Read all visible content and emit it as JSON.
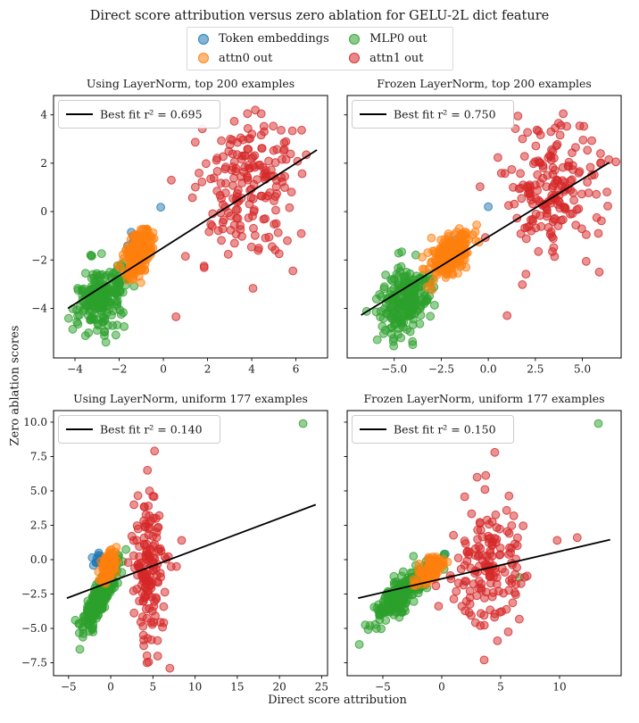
{
  "figure": {
    "title": "Direct score attribution versus zero ablation for GELU-2L dict feature",
    "xlabel": "Direct score attribution",
    "ylabel": "Zero ablation scores",
    "background": "#ffffff"
  },
  "legend": {
    "entries": [
      {
        "label": "Token embeddings",
        "color": "#1f77b4"
      },
      {
        "label": "attn0 out",
        "color": "#ff7f0e"
      },
      {
        "label": "MLP0 out",
        "color": "#2ca02c"
      },
      {
        "label": "attn1 out",
        "color": "#d62728"
      }
    ]
  },
  "chart_data": {
    "type": "scatter",
    "title": "Direct score attribution versus zero ablation for GELU-2L dict feature",
    "xlabel": "Direct score attribution",
    "ylabel": "Zero ablation scores",
    "grid": false,
    "series_names": [
      "Token embeddings",
      "attn0 out",
      "MLP0 out",
      "attn1 out"
    ],
    "subplots": [
      {
        "name": "using-layernorm-top-200",
        "title": "Using LayerNorm, top 200 examples",
        "legend_label": "Best fit r² = 0.695",
        "r_squared": 0.695,
        "xlim": [
          -4.97,
          7.43
        ],
        "ylim": [
          -6.05,
          4.8
        ],
        "xticks": [
          -4,
          -2,
          0,
          2,
          4,
          6
        ],
        "xtick_labels": [
          "−4",
          "−2",
          "0",
          "2",
          "4",
          "6"
        ],
        "yticks": [
          4,
          2,
          0,
          -2,
          -4
        ],
        "ytick_labels": [
          "4",
          "2",
          "0",
          "−2",
          "−4"
        ],
        "best_fit": {
          "x1": -4.32,
          "y1": -4.0,
          "x2": 6.95,
          "y2": 2.55
        },
        "clusters": [
          {
            "series": "Token embeddings",
            "n": 22,
            "cx": -1.25,
            "cy": -1.5,
            "sx": 0.18,
            "sy": 0.35,
            "rho": 0.3,
            "seed": 101
          },
          {
            "series": "MLP0 out",
            "n": 215,
            "cx": -2.75,
            "cy": -3.55,
            "sx": 0.62,
            "sy": 0.68,
            "rho": 0.3,
            "seed": 102
          },
          {
            "series": "attn0 out",
            "n": 200,
            "cx": -1.15,
            "cy": -1.75,
            "sx": 0.3,
            "sy": 0.48,
            "rho": 0.45,
            "seed": 103
          },
          {
            "series": "attn1 out",
            "n": 185,
            "cx": 3.7,
            "cy": 1.15,
            "sx": 1.05,
            "sy": 1.45,
            "rho": 0.05,
            "seed": 104
          }
        ],
        "extra_points": [
          {
            "series": "Token embeddings",
            "x": -0.12,
            "y": 0.18
          },
          {
            "series": "Token embeddings",
            "x": -1.45,
            "y": -0.85
          },
          {
            "series": "MLP0 out",
            "x": -2.6,
            "y": -5.4
          },
          {
            "series": "MLP0 out",
            "x": -2.15,
            "y": -5.1
          },
          {
            "series": "attn1 out",
            "x": 0.36,
            "y": 1.3
          },
          {
            "series": "attn1 out",
            "x": 1.0,
            "y": -1.85
          },
          {
            "series": "attn1 out",
            "x": 0.57,
            "y": -4.35
          }
        ]
      },
      {
        "name": "frozen-layernorm-top-200",
        "title": "Frozen LayerNorm, top 200 examples",
        "legend_label": "Best fit r² = 0.750",
        "r_squared": 0.75,
        "xlim": [
          -7.5,
          7.06
        ],
        "ylim": [
          -6.05,
          4.8
        ],
        "xticks": [
          -5,
          -2.5,
          0,
          2.5,
          5
        ],
        "xtick_labels": [
          "−5.0",
          "−2.5",
          "0.0",
          "2.5",
          "5.0"
        ],
        "yticks": [
          4,
          2,
          0,
          -2,
          -4
        ],
        "ytick_labels": [],
        "best_fit": {
          "x1": -6.76,
          "y1": -4.28,
          "x2": 6.43,
          "y2": 2.03
        },
        "clusters": [
          {
            "series": "Token embeddings",
            "n": 20,
            "cx": -2.0,
            "cy": -1.75,
            "sx": 0.3,
            "sy": 0.4,
            "rho": 0.3,
            "seed": 201
          },
          {
            "series": "MLP0 out",
            "n": 215,
            "cx": -4.5,
            "cy": -3.65,
            "sx": 0.72,
            "sy": 0.72,
            "rho": 0.35,
            "seed": 202
          },
          {
            "series": "attn0 out",
            "n": 200,
            "cx": -2.05,
            "cy": -1.8,
            "sx": 0.52,
            "sy": 0.48,
            "rho": 0.55,
            "seed": 203
          },
          {
            "series": "attn1 out",
            "n": 185,
            "cx": 3.35,
            "cy": 0.95,
            "sx": 1.3,
            "sy": 1.55,
            "rho": 0.05,
            "seed": 204
          }
        ],
        "extra_points": [
          {
            "series": "Token embeddings",
            "x": 0.0,
            "y": 0.2
          },
          {
            "series": "attn1 out",
            "x": 5.85,
            "y": -0.9
          },
          {
            "series": "attn1 out",
            "x": 5.9,
            "y": -2.5
          },
          {
            "series": "attn1 out",
            "x": 1.0,
            "y": -4.3
          },
          {
            "series": "MLP0 out",
            "x": -5.9,
            "y": -5.3
          }
        ]
      },
      {
        "name": "using-layernorm-uniform-177",
        "title": "Using LayerNorm, uniform 177 examples",
        "legend_label": "Best fit r² = 0.140",
        "r_squared": 0.14,
        "xlim": [
          -6.78,
          25.7
        ],
        "ylim": [
          -8.44,
          10.84
        ],
        "xticks": [
          -5,
          0,
          5,
          10,
          15,
          20,
          25
        ],
        "xtick_labels": [
          "−5",
          "0",
          "5",
          "10",
          "15",
          "20",
          "25"
        ],
        "yticks": [
          10,
          7.5,
          5,
          2.5,
          0,
          -2.5,
          -5,
          -7.5
        ],
        "ytick_labels": [
          "10.0",
          "7.5",
          "5.0",
          "2.5",
          "0.0",
          "−2.5",
          "−5.0",
          "−7.5"
        ],
        "best_fit": {
          "x1": -5.2,
          "y1": -2.8,
          "x2": 24.3,
          "y2": 4.0
        },
        "clusters": [
          {
            "series": "Token embeddings",
            "n": 14,
            "cx": -1.6,
            "cy": -0.05,
            "sx": 0.35,
            "sy": 0.25,
            "rho": 0.3,
            "seed": 301
          },
          {
            "series": "MLP0 out",
            "n": 240,
            "cx": -1.2,
            "cy": -2.7,
            "sx": 1.0,
            "sy": 1.15,
            "rho": 0.82,
            "seed": 302
          },
          {
            "series": "attn0 out",
            "n": 120,
            "cx": -0.2,
            "cy": -0.45,
            "sx": 0.42,
            "sy": 0.5,
            "rho": 0.4,
            "seed": 303
          },
          {
            "series": "attn1 out",
            "n": 155,
            "cx": 4.5,
            "cy": -0.7,
            "sx": 0.95,
            "sy": 2.4,
            "rho": 0.0,
            "seed": 304
          }
        ],
        "extra_points": [
          {
            "series": "MLP0 out",
            "x": 22.8,
            "y": 9.9
          },
          {
            "series": "MLP0 out",
            "x": -4.2,
            "y": -4.4
          },
          {
            "series": "MLP0 out",
            "x": -3.8,
            "y": -4.65
          },
          {
            "series": "Token embeddings",
            "x": -2.2,
            "y": 0.15
          },
          {
            "series": "attn1 out",
            "x": 5.2,
            "y": 7.9
          },
          {
            "series": "attn1 out",
            "x": 4.6,
            "y": 5.0
          },
          {
            "series": "attn1 out",
            "x": 4.35,
            "y": 6.5
          },
          {
            "series": "attn1 out",
            "x": 8.4,
            "y": 1.4
          },
          {
            "series": "attn1 out",
            "x": 7.8,
            "y": -0.5
          },
          {
            "series": "attn1 out",
            "x": 4.3,
            "y": -7.5
          },
          {
            "series": "attn1 out",
            "x": 2.75,
            "y": 4.0
          }
        ]
      },
      {
        "name": "frozen-layernorm-uniform-177",
        "title": "Frozen LayerNorm, uniform 177 examples",
        "legend_label": "Best fit r² = 0.150",
        "r_squared": 0.15,
        "xlim": [
          -8.03,
          15.23
        ],
        "ylim": [
          -8.44,
          10.84
        ],
        "xticks": [
          -5,
          0,
          5,
          10
        ],
        "xtick_labels": [
          "−5",
          "0",
          "5",
          "10"
        ],
        "yticks": [
          10,
          7.5,
          5,
          2.5,
          0,
          -2.5,
          -5,
          -7.5
        ],
        "ytick_labels": [],
        "best_fit": {
          "x1": -7.1,
          "y1": -2.8,
          "x2": 14.3,
          "y2": 1.45
        },
        "clusters": [
          {
            "series": "Token embeddings",
            "n": 12,
            "cx": -0.9,
            "cy": -0.45,
            "sx": 0.28,
            "sy": 0.3,
            "rho": 0.3,
            "seed": 401
          },
          {
            "series": "MLP0 out",
            "n": 245,
            "cx": -3.4,
            "cy": -2.5,
            "sx": 1.2,
            "sy": 0.95,
            "rho": 0.8,
            "seed": 402
          },
          {
            "series": "attn0 out",
            "n": 130,
            "cx": -0.95,
            "cy": -0.75,
            "sx": 0.48,
            "sy": 0.4,
            "rho": 0.45,
            "seed": 403
          },
          {
            "series": "attn1 out",
            "n": 155,
            "cx": 4.0,
            "cy": -0.7,
            "sx": 1.5,
            "sy": 2.3,
            "rho": 0.0,
            "seed": 404
          }
        ],
        "extra_points": [
          {
            "series": "MLP0 out",
            "x": 13.3,
            "y": 9.9
          },
          {
            "series": "MLP0 out",
            "x": -2.4,
            "y": 0.25
          },
          {
            "series": "MLP0 out",
            "x": 6.6,
            "y": -1.3
          },
          {
            "series": "MLP0 out",
            "x": -6.1,
            "y": -4.8
          },
          {
            "series": "Token embeddings",
            "x": 0.3,
            "y": 0.4
          },
          {
            "series": "attn1 out",
            "x": 4.5,
            "y": 7.8
          },
          {
            "series": "attn1 out",
            "x": 3.0,
            "y": 6.0
          },
          {
            "series": "attn1 out",
            "x": 9.8,
            "y": 1.4
          },
          {
            "series": "attn1 out",
            "x": 11.5,
            "y": 1.6
          },
          {
            "series": "attn1 out",
            "x": 3.6,
            "y": -7.3
          }
        ]
      }
    ]
  }
}
